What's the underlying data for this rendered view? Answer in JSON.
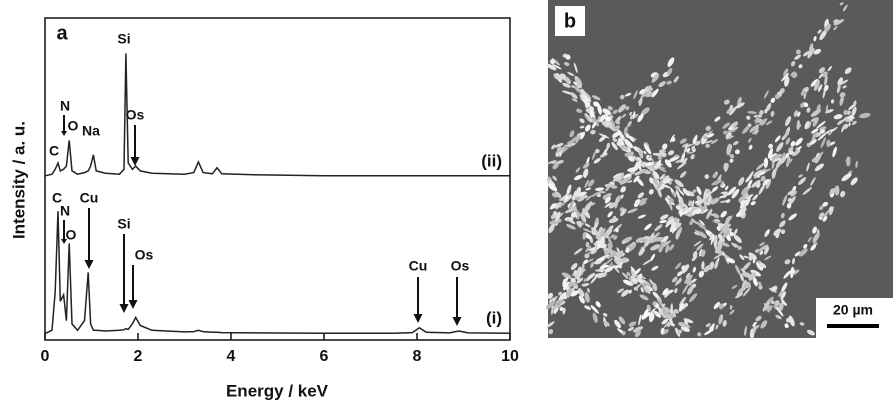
{
  "chart_data": {
    "type": "line",
    "panel_label": "a",
    "x_label": "Energy / keV",
    "y_label": "Intensity / a. u.",
    "x": [
      0,
      0.15,
      0.22,
      0.28,
      0.33,
      0.4,
      0.46,
      0.52,
      0.58,
      0.7,
      0.85,
      0.93,
      0.98,
      1.04,
      1.1,
      1.3,
      1.6,
      1.7,
      1.74,
      1.79,
      1.88,
      1.95,
      2.05,
      2.3,
      3.0,
      3.2,
      3.3,
      3.4,
      3.6,
      3.7,
      3.8,
      4.5,
      6,
      7.5,
      7.9,
      8.05,
      8.2,
      8.7,
      8.9,
      9.1,
      10
    ],
    "series": [
      {
        "name": "(ii)",
        "color": "#222222",
        "values": [
          51,
          51.5,
          53,
          55,
          52.5,
          53,
          54,
          62,
          52.5,
          51.5,
          52,
          52.5,
          54,
          57.5,
          52.5,
          51.8,
          51.5,
          53,
          89,
          55,
          53,
          54,
          52.5,
          51.8,
          51.5,
          52,
          55.3,
          52,
          51.6,
          53.5,
          51.6,
          51.3,
          51,
          51,
          51,
          51,
          51,
          51,
          51,
          51,
          51
        ]
      },
      {
        "name": "(i)",
        "color": "#222222",
        "values": [
          2,
          3,
          15,
          40,
          12,
          14,
          6,
          30,
          5,
          3,
          6,
          21,
          5,
          3,
          3,
          2.8,
          3,
          3.2,
          3.5,
          3.3,
          5,
          7,
          4.5,
          3,
          2.5,
          2.6,
          3,
          2.6,
          2.4,
          2.4,
          2.3,
          2.2,
          2.1,
          2.1,
          2.3,
          3.8,
          2.4,
          2.2,
          2.8,
          2.2,
          2.1
        ]
      }
    ],
    "annotations": [
      "Si",
      "N",
      "O",
      "C",
      "Na",
      "Os",
      "C",
      "N",
      "O",
      "Cu",
      "Si",
      "Os",
      "Cu",
      "Os"
    ],
    "xlim": [
      0,
      10
    ],
    "xticks": [
      0,
      2,
      4,
      6,
      8,
      10
    ],
    "ylim": [
      0,
      100
    ],
    "yticks": []
  },
  "panel_b": {
    "label": "b",
    "scale_bar": "20 µm"
  }
}
